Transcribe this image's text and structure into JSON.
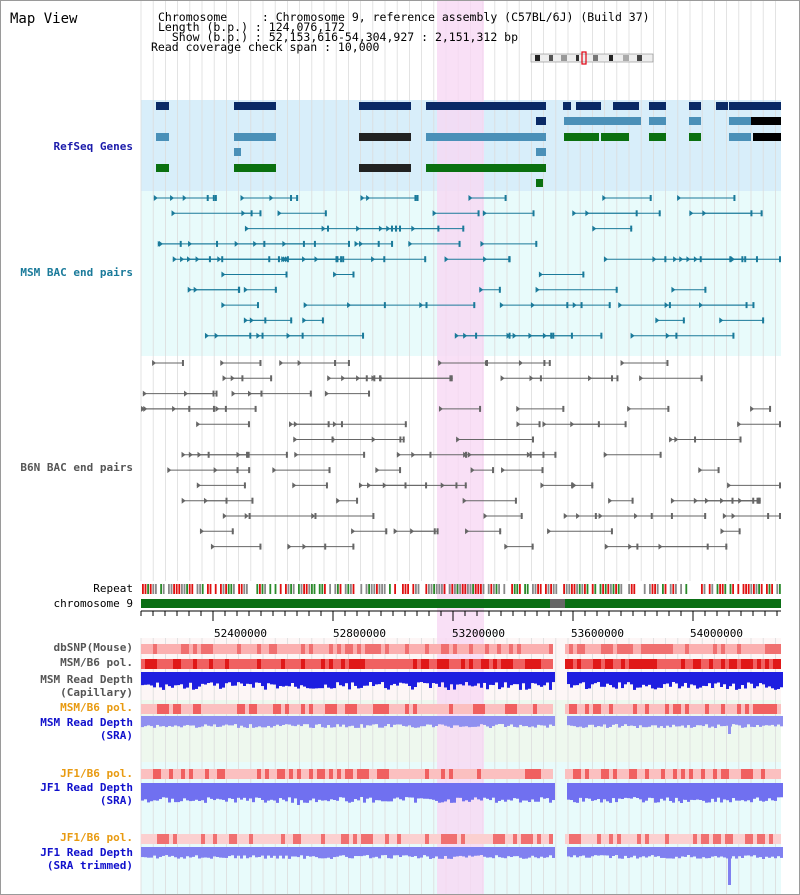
{
  "title": "Map View",
  "header": {
    "chromosome": "Chromosome     : Chromosome 9, reference assembly (C57BL/6J) (Build 37)",
    "length": "Length (b.p.) : 124,076,172",
    "show": "  Show (b.p.) : 52,153,616-54,304,927 : 2,151,312 bp",
    "coverage": "Read coverage check span : 10,000"
  },
  "tracks": {
    "refseq": "RefSeq Genes",
    "msm_bac": "MSM BAC end pairs",
    "b6n_bac": "B6N BAC end pairs",
    "repeat": "Repeat",
    "chromosome": "chromosome 9",
    "dbsnp": "dbSNP(Mouse)",
    "msm_b6_pol_1": "MSM/B6 pol.",
    "msm_depth_cap_1": "MSM Read Depth",
    "msm_depth_cap_2": "(Capillary)",
    "msm_b6_pol_2": "MSM/B6 pol.",
    "msm_depth_sra_1": "MSM Read Depth",
    "msm_depth_sra_2": "(SRA)",
    "jf1_b6_pol_1": "JF1/B6 pol.",
    "jf1_depth_sra_1": "JF1 Read Depth",
    "jf1_depth_sra_2": "(SRA)",
    "jf1_b6_pol_2": "JF1/B6 pol.",
    "jf1_depth_trim_1": "JF1 Read Depth",
    "jf1_depth_trim_2": "(SRA trimmed)"
  },
  "axis_ticks": [
    "52400000",
    "52800000",
    "53200000",
    "53600000",
    "54000000"
  ],
  "colors": {
    "refseq_label": "#1a1aaa",
    "msm_label": "#1a7a9a",
    "b6n_label": "#555555",
    "orange_label": "#e89a10",
    "blue_label": "#1010cc",
    "highlight": "#f8d8f4",
    "gene_dark": "#0a2a66",
    "gene_light": "#4a90b8",
    "gene_green": "#0a7010",
    "msm_pair": "#1a7a9a",
    "b6n_pair": "#666666",
    "chrom_bar": "#0a6e14"
  },
  "icons": [
    "chromosome-ideogram-icon"
  ]
}
